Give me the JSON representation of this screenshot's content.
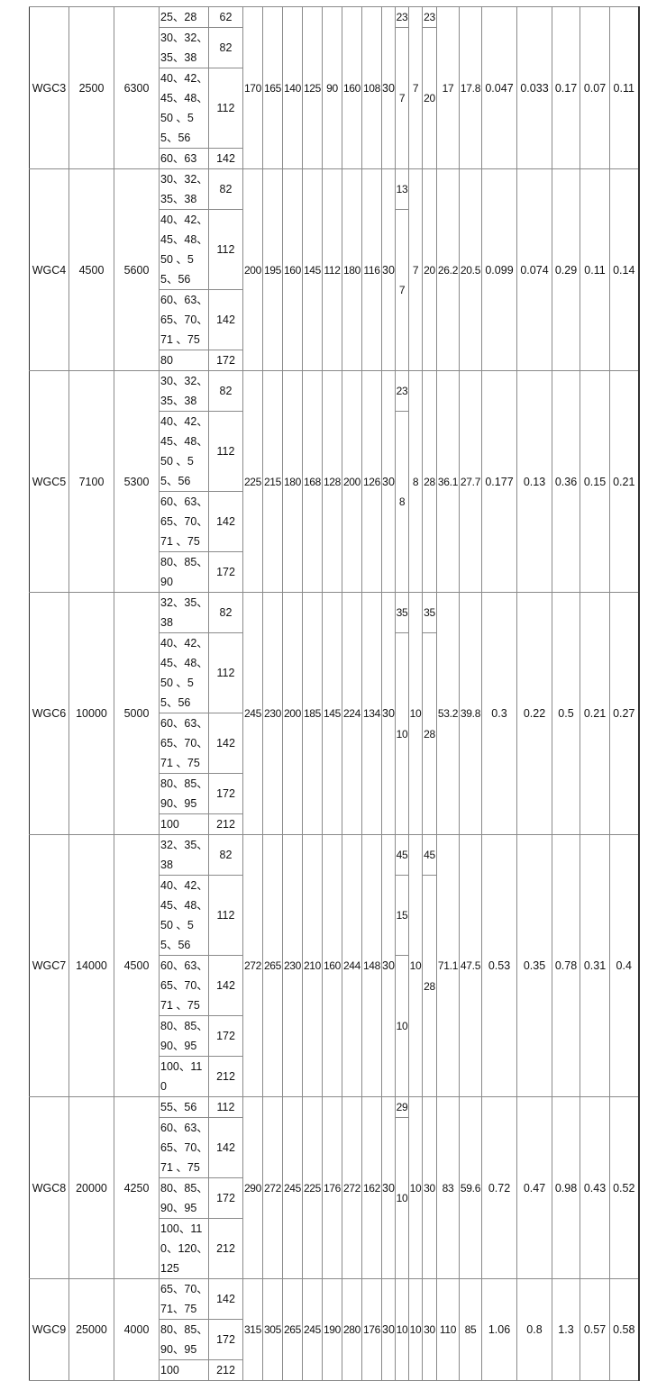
{
  "table": {
    "groups": [
      {
        "model": "WGC3",
        "torque": "2500",
        "speed": "6300",
        "shafts": [
          [
            "25、28",
            "62"
          ],
          [
            "30、32、35、38",
            "82"
          ],
          [
            "40、42、45、48、50 、55、56",
            "112"
          ],
          [
            "60、63",
            "142"
          ]
        ],
        "dims": [
          "170",
          "165",
          "140",
          "125",
          "90",
          "160",
          "108",
          "30"
        ],
        "c1": [
          [
            "23",
            1
          ],
          [
            "7",
            3
          ]
        ],
        "c2": "7",
        "c3": [
          [
            "23",
            1
          ],
          [
            "20",
            3
          ]
        ],
        "tail": [
          "17",
          "17.8",
          "0.047",
          "0.033",
          "0.17",
          "0.07",
          "0.11"
        ]
      },
      {
        "model": "WGC4",
        "torque": "4500",
        "speed": "5600",
        "shafts": [
          [
            "30、32、35、38",
            "82"
          ],
          [
            "40、42、45、48、50 、55、56",
            "112"
          ],
          [
            "60、63、65、70、71 、75",
            "142"
          ],
          [
            "80",
            "172"
          ]
        ],
        "dims": [
          "200",
          "195",
          "160",
          "145",
          "112",
          "180",
          "116",
          "30"
        ],
        "c1": [
          [
            "13",
            1
          ],
          [
            "7",
            3
          ]
        ],
        "c2": "7",
        "c3": [
          [
            "20",
            4
          ]
        ],
        "tail": [
          "26.2",
          "20.5",
          "0.099",
          "0.074",
          "0.29",
          "0.11",
          "0.14"
        ]
      },
      {
        "model": "WGC5",
        "torque": "7100",
        "speed": "5300",
        "shafts": [
          [
            "30、32、35、38",
            "82"
          ],
          [
            "40、42、45、48、50 、55、56",
            "112"
          ],
          [
            "60、63、65、70、71 、75",
            "142"
          ],
          [
            "80、85、90",
            "172"
          ]
        ],
        "dims": [
          "225",
          "215",
          "180",
          "168",
          "128",
          "200",
          "126",
          "30"
        ],
        "c1": [
          [
            "23",
            1
          ],
          [
            "8",
            3
          ]
        ],
        "c2": "8",
        "c3": [
          [
            "28",
            4
          ]
        ],
        "tail": [
          "36.1",
          "27.7",
          "0.177",
          "0.13",
          "0.36",
          "0.15",
          "0.21"
        ]
      },
      {
        "model": "WGC6",
        "torque": "10000",
        "speed": "5000",
        "shafts": [
          [
            "32、35、38",
            "82"
          ],
          [
            "40、42、45、48、50 、55、56",
            "112"
          ],
          [
            "60、63、65、70、71 、75",
            "142"
          ],
          [
            "80、85、90、95",
            "172"
          ],
          [
            "100",
            "212"
          ]
        ],
        "dims": [
          "245",
          "230",
          "200",
          "185",
          "145",
          "224",
          "134",
          "30"
        ],
        "c1": [
          [
            "35",
            1
          ],
          [
            "10",
            4
          ]
        ],
        "c2": "10",
        "c3": [
          [
            "35",
            1
          ],
          [
            "28",
            4
          ]
        ],
        "tail": [
          "53.2",
          "39.8",
          "0.3",
          "0.22",
          "0.5",
          "0.21",
          "0.27"
        ]
      },
      {
        "model": "WGC7",
        "torque": "14000",
        "speed": "4500",
        "shafts": [
          [
            "32、35、38",
            "82"
          ],
          [
            "40、42、45、48、50 、55、56",
            "112"
          ],
          [
            "60、63、65、70、71 、75",
            "142"
          ],
          [
            "80、85、90、95",
            "172"
          ],
          [
            "100、110",
            "212"
          ]
        ],
        "dims": [
          "272",
          "265",
          "230",
          "210",
          "160",
          "244",
          "148",
          "30"
        ],
        "c1": [
          [
            "45",
            1
          ],
          [
            "15",
            1
          ],
          [
            "10",
            3
          ]
        ],
        "c2": "10",
        "c3": [
          [
            "45",
            1
          ],
          [
            "28",
            4
          ]
        ],
        "tail": [
          "71.1",
          "47.5",
          "0.53",
          "0.35",
          "0.78",
          "0.31",
          "0.4"
        ]
      },
      {
        "model": "WGC8",
        "torque": "20000",
        "speed": "4250",
        "shafts": [
          [
            "55、56",
            "112"
          ],
          [
            "60、63、65、70、71 、75",
            "142"
          ],
          [
            "80、85、90、95",
            "172"
          ],
          [
            "100、110、120、125",
            "212"
          ]
        ],
        "dims": [
          "290",
          "272",
          "245",
          "225",
          "176",
          "272",
          "162",
          "30"
        ],
        "c1": [
          [
            "29",
            1
          ],
          [
            "10",
            3
          ]
        ],
        "c2": "10",
        "c3": [
          [
            "30",
            4
          ]
        ],
        "tail": [
          "83",
          "59.6",
          "0.72",
          "0.47",
          "0.98",
          "0.43",
          "0.52"
        ]
      },
      {
        "model": "WGC9",
        "torque": "25000",
        "speed": "4000",
        "shafts": [
          [
            "65、70、71、75",
            "142"
          ],
          [
            "80、85、90、95",
            "172"
          ],
          [
            "100",
            "212"
          ]
        ],
        "dims": [
          "315",
          "305",
          "265",
          "245",
          "190",
          "280",
          "176",
          "30"
        ],
        "c1": [
          [
            "10",
            3
          ]
        ],
        "c2": "10",
        "c3": [
          [
            "30",
            3
          ]
        ],
        "tail": [
          "110",
          "85",
          "1.06",
          "0.8",
          "1.3",
          "0.57",
          "0.58"
        ]
      }
    ]
  }
}
